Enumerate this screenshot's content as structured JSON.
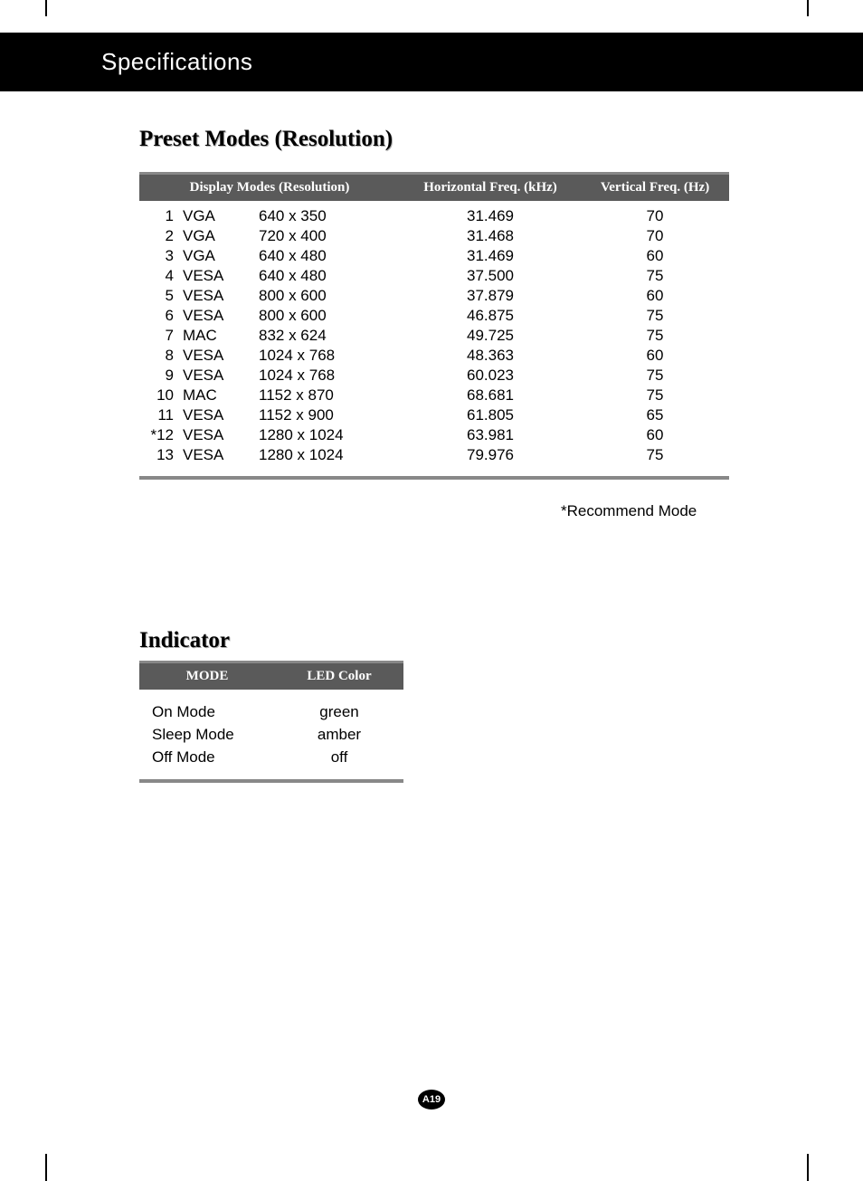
{
  "header": {
    "title": "Specifications"
  },
  "preset": {
    "section_title": "Preset Modes (Resolution)",
    "columns": {
      "modes": "Display Modes (Resolution)",
      "hfreq": "Horizontal Freq. (kHz)",
      "vfreq": "Vertical Freq. (Hz)"
    },
    "rows": [
      {
        "num": "1",
        "std": "VGA",
        "res": "640 x 350",
        "hfreq": "31.469",
        "vfreq": "70"
      },
      {
        "num": "2",
        "std": "VGA",
        "res": "720 x 400",
        "hfreq": "31.468",
        "vfreq": "70"
      },
      {
        "num": "3",
        "std": "VGA",
        "res": "640 x 480",
        "hfreq": "31.469",
        "vfreq": "60"
      },
      {
        "num": "4",
        "std": "VESA",
        "res": "640 x 480",
        "hfreq": "37.500",
        "vfreq": "75"
      },
      {
        "num": "5",
        "std": "VESA",
        "res": "800 x 600",
        "hfreq": "37.879",
        "vfreq": "60"
      },
      {
        "num": "6",
        "std": "VESA",
        "res": "800 x 600",
        "hfreq": "46.875",
        "vfreq": "75"
      },
      {
        "num": "7",
        "std": "MAC",
        "res": "832 x 624",
        "hfreq": "49.725",
        "vfreq": "75"
      },
      {
        "num": "8",
        "std": "VESA",
        "res": "1024 x 768",
        "hfreq": "48.363",
        "vfreq": "60"
      },
      {
        "num": "9",
        "std": "VESA",
        "res": "1024 x 768",
        "hfreq": "60.023",
        "vfreq": "75"
      },
      {
        "num": "10",
        "std": "MAC",
        "res": "1152 x 870",
        "hfreq": "68.681",
        "vfreq": "75"
      },
      {
        "num": "11",
        "std": "VESA",
        "res": "1152 x 900",
        "hfreq": "61.805",
        "vfreq": "65"
      },
      {
        "num": "*12",
        "std": "VESA",
        "res": "1280 x 1024",
        "hfreq": "63.981",
        "vfreq": "60"
      },
      {
        "num": "13",
        "std": "VESA",
        "res": "1280 x 1024",
        "hfreq": "79.976",
        "vfreq": "75"
      }
    ],
    "note": "*Recommend Mode"
  },
  "indicator": {
    "section_title": "Indicator",
    "columns": {
      "mode": "MODE",
      "led": "LED Color"
    },
    "rows": [
      {
        "mode": "On Mode",
        "led": "green"
      },
      {
        "mode": "Sleep Mode",
        "led": "amber"
      },
      {
        "mode": "Off Mode",
        "led": "off"
      }
    ]
  },
  "page": {
    "number": "A19"
  },
  "styling": {
    "header_bg": "#000000",
    "header_text": "#ffffff",
    "table_header_bg": "#5a5a5a",
    "table_header_text": "#ffffff",
    "border_color": "#888888",
    "body_text": "#000000",
    "title_shadow": "#b0b0b0",
    "body_fontsize": 17,
    "header_fontsize": 26,
    "section_title_fontsize": 25,
    "table_header_fontsize": 15
  }
}
